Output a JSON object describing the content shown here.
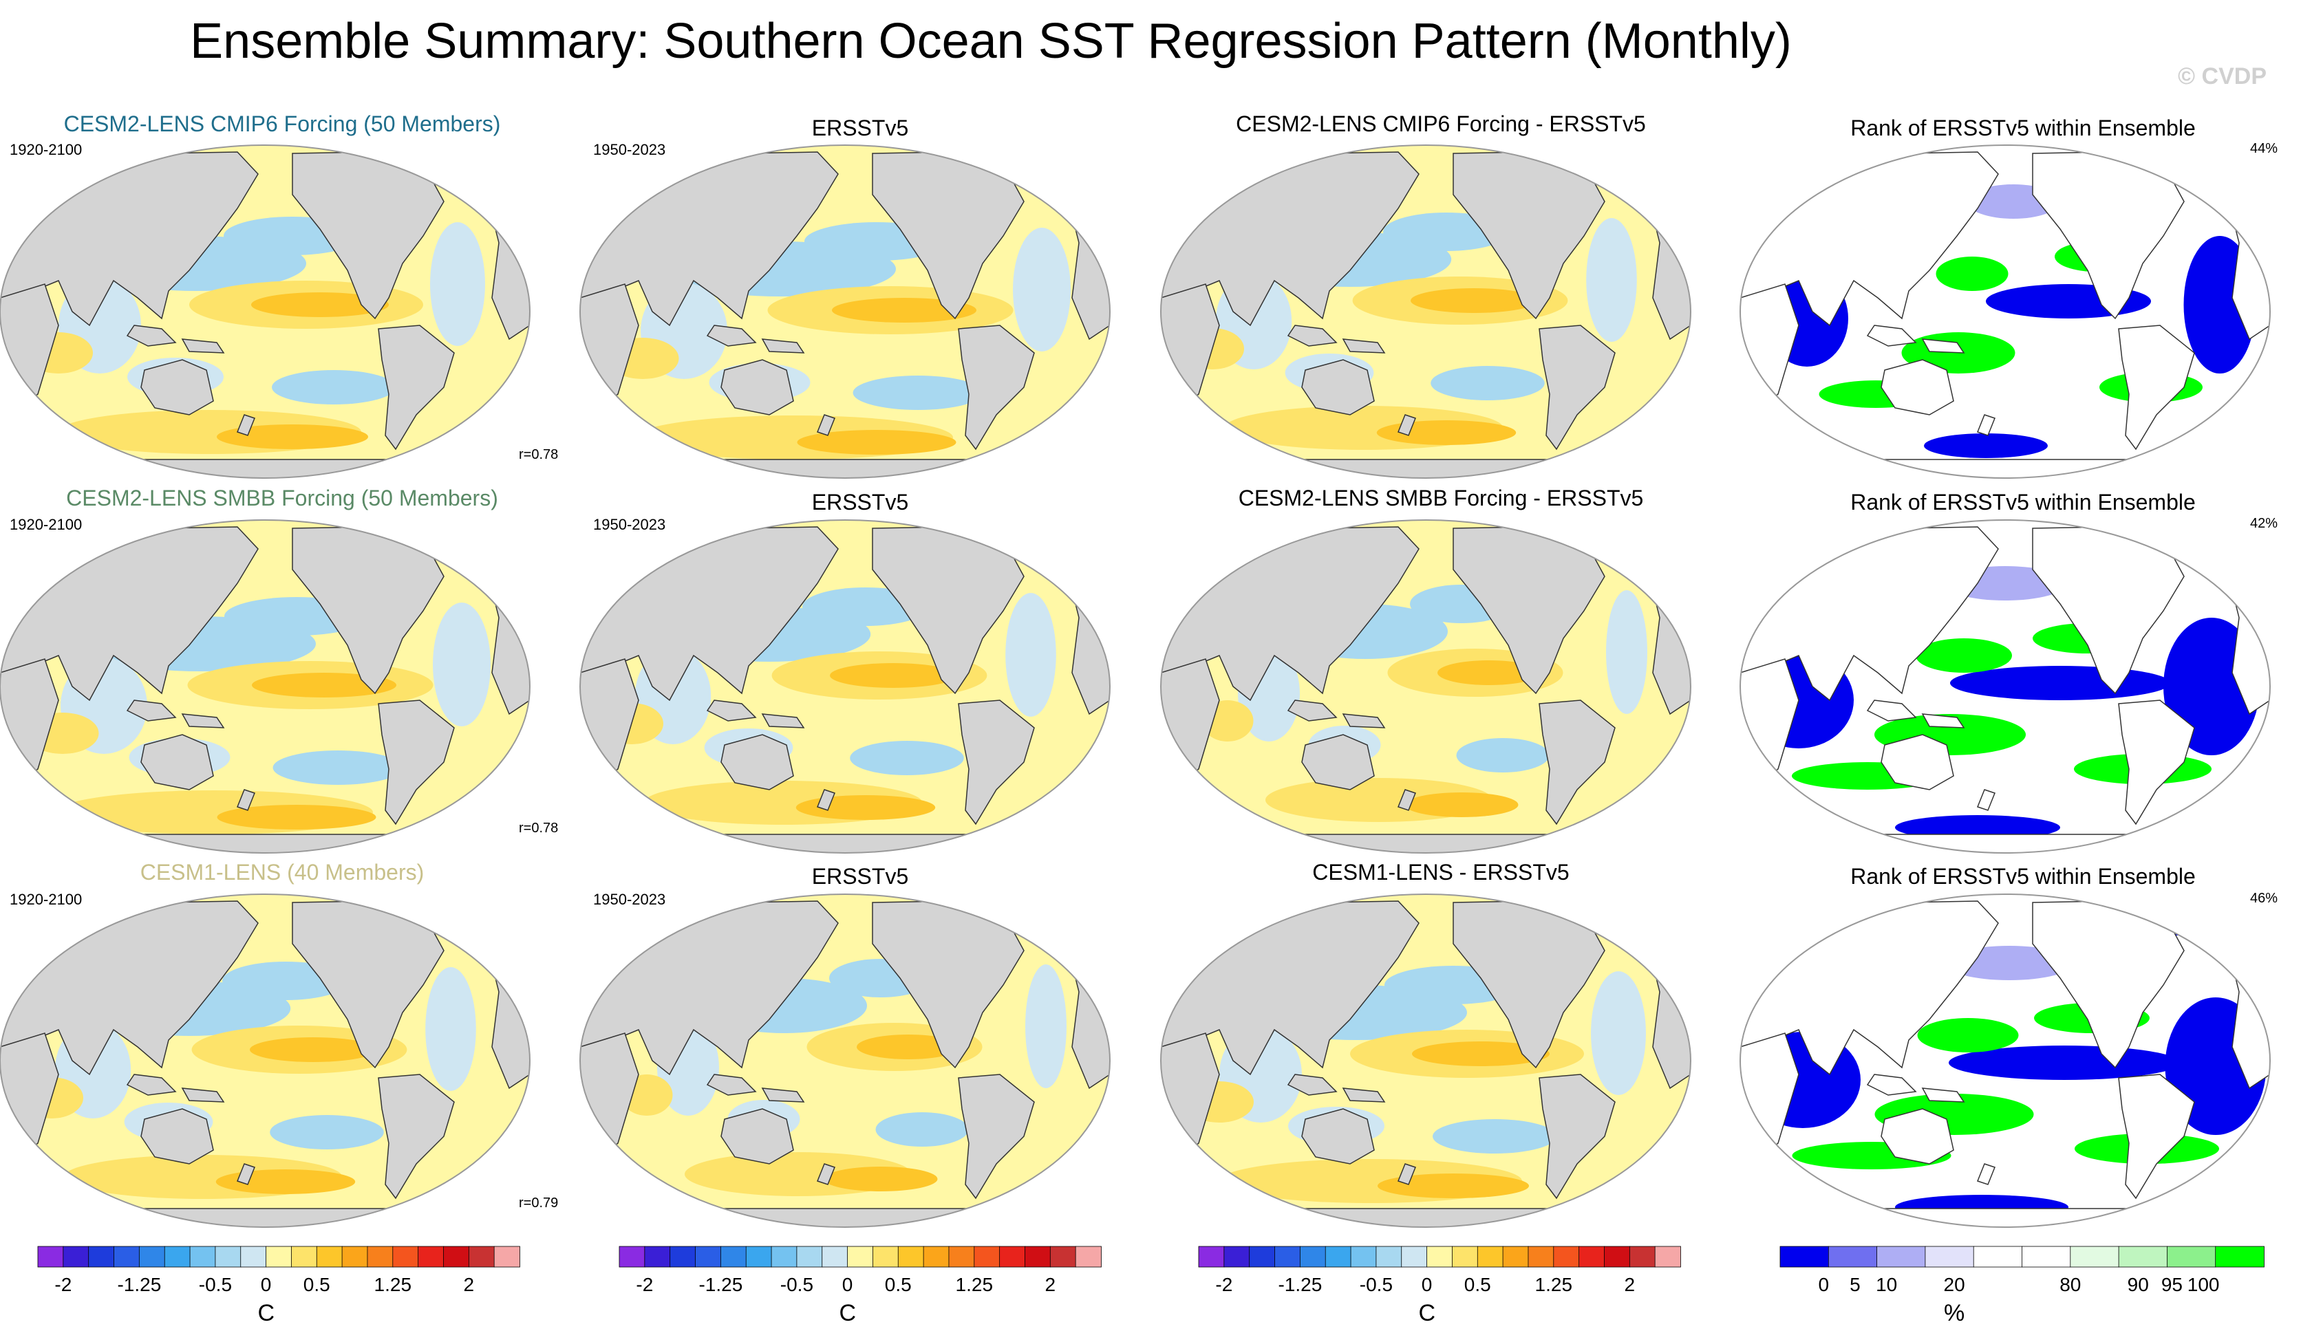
{
  "title": "Ensemble Summary: Southern Ocean SST Regression Pattern (Monthly)",
  "copyright": "© CVDP",
  "colors": {
    "row_title": [
      "#1f6e8c",
      "#5a8a66",
      "#c8c08a"
    ],
    "land": "#d4d4d4",
    "ocean_neutral": "#ffffff"
  },
  "rows": [
    {
      "ensemble_title": "CESM2-LENS CMIP6 Forcing (50 Members)",
      "ensemble_period": "1920-2100",
      "obs_title": "ERSSTv5",
      "obs_period": "1950-2023",
      "diff_title": "CESM2-LENS CMIP6 Forcing - ERSSTv5",
      "rank_title": "Rank of ERSSTv5 within Ensemble",
      "pattern_correlation": "r=0.78",
      "rank_percent": "44%"
    },
    {
      "ensemble_title": "CESM2-LENS SMBB Forcing (50 Members)",
      "ensemble_period": "1920-2100",
      "obs_title": "ERSSTv5",
      "obs_period": "1950-2023",
      "diff_title": "CESM2-LENS SMBB Forcing - ERSSTv5",
      "rank_title": "Rank of ERSSTv5 within Ensemble",
      "pattern_correlation": "r=0.78",
      "rank_percent": "42%"
    },
    {
      "ensemble_title": "CESM1-LENS (40 Members)",
      "ensemble_period": "1920-2100",
      "obs_title": "ERSSTv5",
      "obs_period": "1950-2023",
      "diff_title": "CESM1-LENS - ERSSTv5",
      "rank_title": "Rank of ERSSTv5 within Ensemble",
      "pattern_correlation": "r=0.79",
      "rank_percent": "46%"
    }
  ],
  "chart_data": {
    "type": "heatmap",
    "projection": "Robinson (global, Pacific-centered)",
    "variable": "SST regression onto Southern Ocean SST index",
    "sst_colorbar": {
      "unit": "C",
      "range": [
        -2,
        2
      ],
      "tick_labels": [
        "-2",
        "-1.25",
        "-0.5",
        "0",
        "0.5",
        "1.25",
        "2"
      ],
      "tick_values": [
        -2,
        -1.25,
        -0.5,
        0,
        0.5,
        1.25,
        2
      ],
      "colors": [
        "#8a2be2",
        "#3a1fd6",
        "#1e3cdc",
        "#2a5ee6",
        "#2f86e8",
        "#3aa6ee",
        "#74c2f0",
        "#a8d8f0",
        "#cfe6f2",
        "#fff8a6",
        "#fde36a",
        "#fdc62a",
        "#fba51a",
        "#f7801c",
        "#f4551e",
        "#e8231c",
        "#d00e14",
        "#c83232",
        "#f5a7a7"
      ]
    },
    "rank_colorbar": {
      "unit": "%",
      "range": [
        0,
        100
      ],
      "tick_labels": [
        "0",
        "5",
        "10",
        "20",
        "80",
        "90",
        "95",
        "100"
      ],
      "tick_values": [
        0,
        5,
        10,
        20,
        80,
        90,
        95,
        100
      ],
      "colors": [
        "#0000ee",
        "#6f6ff0",
        "#aeaef4",
        "#e2e2fa",
        "#ffffff",
        "#ffffff",
        "#e2fae2",
        "#bff5bf",
        "#8cf08c",
        "#00ff00"
      ]
    },
    "pattern_correlations": [
      0.78,
      0.78,
      0.79
    ],
    "rank_percents": [
      44,
      42,
      46
    ]
  }
}
